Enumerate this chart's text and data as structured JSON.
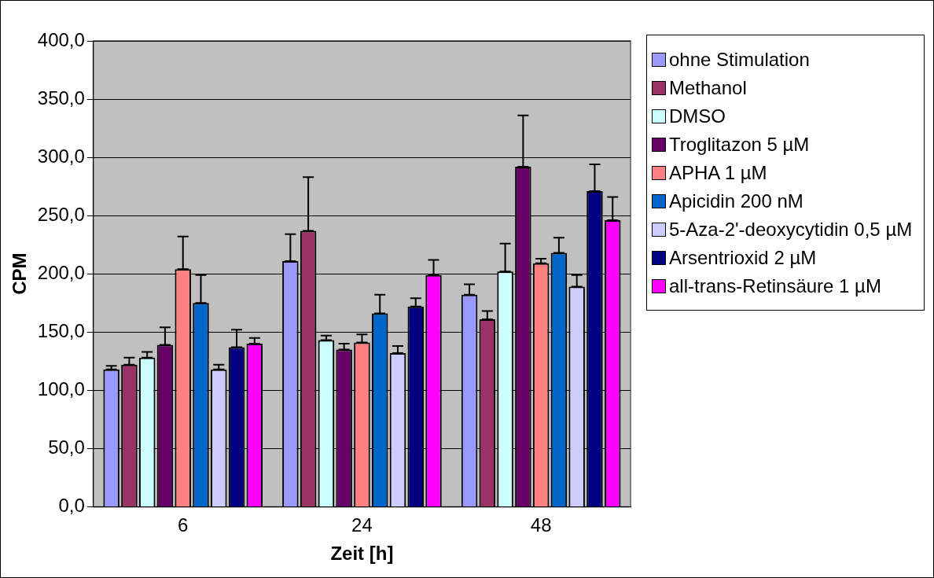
{
  "chart_data": {
    "type": "bar",
    "xlabel": "Zeit [h]",
    "ylabel": "CPM",
    "categories": [
      "6",
      "24",
      "48"
    ],
    "series": [
      {
        "name": "ohne Stimulation",
        "color": "#9999ff",
        "values": [
          118,
          211,
          182
        ],
        "errors": [
          [
            118,
            121
          ],
          [
            211,
            234
          ],
          [
            182,
            191
          ]
        ]
      },
      {
        "name": "Methanol",
        "color": "#993366",
        "values": [
          122,
          237,
          161
        ],
        "errors": [
          [
            122,
            128
          ],
          [
            237,
            283
          ],
          [
            161,
            168
          ]
        ]
      },
      {
        "name": "DMSO",
        "color": "#ccffff",
        "values": [
          128,
          143,
          202
        ],
        "errors": [
          [
            128,
            133
          ],
          [
            143,
            147
          ],
          [
            202,
            226
          ]
        ]
      },
      {
        "name": "Troglitazon 5 µM",
        "color": "#660066",
        "values": [
          139,
          135,
          292
        ],
        "errors": [
          [
            139,
            154
          ],
          [
            135,
            140
          ],
          [
            292,
            336
          ]
        ]
      },
      {
        "name": "APHA 1 µM",
        "color": "#ff8080",
        "values": [
          204,
          141,
          209
        ],
        "errors": [
          [
            204,
            232
          ],
          [
            141,
            148
          ],
          [
            209,
            213
          ]
        ]
      },
      {
        "name": "Apicidin 200 nM",
        "color": "#0066cc",
        "values": [
          175,
          166,
          218
        ],
        "errors": [
          [
            175,
            199
          ],
          [
            166,
            182
          ],
          [
            218,
            231
          ]
        ]
      },
      {
        "name": "5-Aza-2'-deoxycytidin 0,5 µM",
        "color": "#ccccff",
        "values": [
          118,
          132,
          189
        ],
        "errors": [
          [
            118,
            122
          ],
          [
            132,
            138
          ],
          [
            189,
            199
          ]
        ]
      },
      {
        "name": "Arsentrioxid 2 µM",
        "color": "#000080",
        "values": [
          137,
          172,
          271
        ],
        "errors": [
          [
            137,
            152
          ],
          [
            172,
            179
          ],
          [
            271,
            294
          ]
        ]
      },
      {
        "name": "all-trans-Retinsäure 1 µM",
        "color": "#ff00ff",
        "values": [
          140,
          199,
          246
        ],
        "errors": [
          [
            140,
            145
          ],
          [
            199,
            212
          ],
          [
            246,
            266
          ]
        ]
      }
    ],
    "ylim": [
      0,
      400
    ],
    "yticks": [
      {
        "value": 0,
        "label": "0,0"
      },
      {
        "value": 50,
        "label": "50,0"
      },
      {
        "value": 100,
        "label": "100,0"
      },
      {
        "value": 150,
        "label": "150,0"
      },
      {
        "value": 200,
        "label": "200,0"
      },
      {
        "value": 250,
        "label": "250,0"
      },
      {
        "value": 300,
        "label": "300,0"
      },
      {
        "value": 350,
        "label": "350,0"
      },
      {
        "value": 400,
        "label": "400,0"
      }
    ],
    "grid": "y",
    "legend": "right"
  }
}
